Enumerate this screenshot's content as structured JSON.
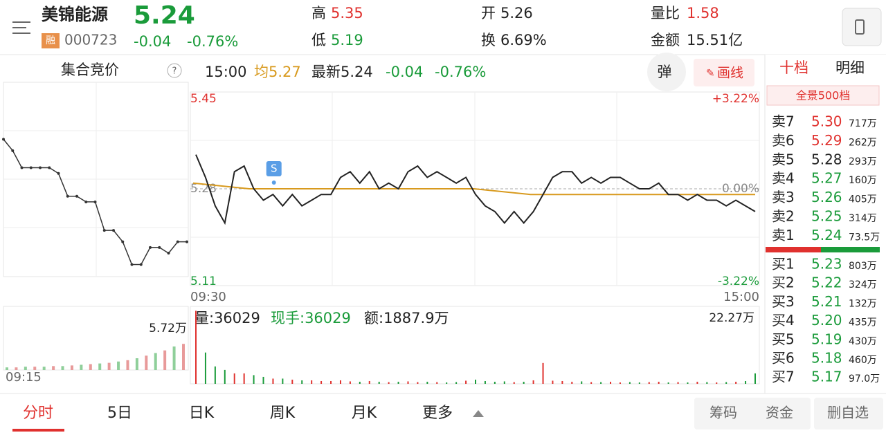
{
  "header": {
    "name": "美锦能源",
    "price": "5.24",
    "tag": "融",
    "code": "000723",
    "change": "-0.04",
    "pct": "-0.76%",
    "high_label": "高",
    "high": "5.35",
    "low_label": "低",
    "low": "5.19",
    "open_label": "开",
    "open": "5.26",
    "turnover_label": "换",
    "turnover": "6.69%",
    "ratio_label": "量比",
    "ratio": "1.58",
    "amount_label": "金额",
    "amount": "15.51亿"
  },
  "info": {
    "auction_title": "集合竞价",
    "help": "?",
    "time": "15:00",
    "avg": "均5.27",
    "latest": "最新5.24",
    "change": "-0.04",
    "pct": "-0.76%",
    "pop": "弹",
    "draw": "画线"
  },
  "intraday": {
    "ylim": [
      5.11,
      5.45
    ],
    "yticks": [
      5.45,
      5.28,
      5.11
    ],
    "pct_ticks": [
      {
        "value": 5.45,
        "label": "+3.22%"
      },
      {
        "value": 5.28,
        "label": "0.00%"
      },
      {
        "value": 5.11,
        "label": "-3.22%"
      }
    ],
    "start": "09:30",
    "end": "15:00",
    "marker": "S",
    "price": [
      5.34,
      5.3,
      5.25,
      5.22,
      5.31,
      5.32,
      5.28,
      5.26,
      5.27,
      5.25,
      5.27,
      5.25,
      5.26,
      5.27,
      5.27,
      5.3,
      5.31,
      5.29,
      5.31,
      5.28,
      5.29,
      5.28,
      5.31,
      5.32,
      5.3,
      5.31,
      5.3,
      5.29,
      5.3,
      5.27,
      5.25,
      5.24,
      5.22,
      5.24,
      5.22,
      5.24,
      5.27,
      5.3,
      5.31,
      5.31,
      5.29,
      5.3,
      5.29,
      5.3,
      5.3,
      5.29,
      5.28,
      5.28,
      5.29,
      5.27,
      5.27,
      5.26,
      5.27,
      5.26,
      5.26,
      5.25,
      5.26,
      5.25,
      5.24
    ],
    "avg": [
      5.29,
      5.28,
      5.28,
      5.28,
      5.28,
      5.28,
      5.27,
      5.27,
      5.27,
      5.27,
      5.27
    ],
    "price_color": "#222222",
    "avg_color": "#d89a1e"
  },
  "volume": {
    "label": "量:36029",
    "hand": "现手:36029",
    "amount": "额:1887.9万",
    "ylim": [
      0,
      22.27
    ],
    "yticks": [
      {
        "value": 22.27,
        "label": "22.27万"
      }
    ],
    "values": [
      21,
      9,
      5,
      4,
      3,
      3,
      2.5,
      2,
      1.5,
      1.5,
      1.2,
      1,
      1,
      0.8,
      0.8,
      1,
      0.7,
      0.6,
      0.8,
      0.6,
      0.5,
      0.6,
      0.7,
      0.5,
      0.6,
      0.5,
      0.4,
      0.5,
      0.9,
      1.2,
      0.8,
      0.6,
      0.7,
      0.5,
      0.6,
      1,
      6,
      0.9,
      0.8,
      0.6,
      0.7,
      0.5,
      0.5,
      0.6,
      0.4,
      0.5,
      0.4,
      0.5,
      0.6,
      0.4,
      0.5,
      0.4,
      0.6,
      0.5,
      0.4,
      0.5,
      0.6,
      0.8,
      3
    ]
  },
  "auction": {
    "start": "09:15",
    "price": [
      5.35,
      5.33,
      5.3,
      5.3,
      5.3,
      5.3,
      5.29,
      5.25,
      5.25,
      5.24,
      5.24,
      5.19,
      5.19,
      5.17,
      5.13,
      5.13,
      5.16,
      5.16,
      5.15,
      5.17,
      5.17
    ],
    "volume_ylim": [
      0,
      5.72
    ],
    "volume_ticks": [
      {
        "value": 5.72,
        "label": "5.72万"
      }
    ],
    "volume": [
      0.4,
      0.4,
      0.5,
      0.5,
      0.5,
      0.6,
      0.6,
      0.7,
      0.8,
      0.9,
      1.0,
      1.1,
      1.3,
      1.5,
      1.8,
      2.2,
      2.6,
      3.0,
      3.6,
      4.0
    ]
  },
  "orderbook": {
    "tab1": "十档",
    "tab2": "明细",
    "panorama": "全景500档",
    "preclose": 5.28,
    "sell": [
      {
        "label": "卖7",
        "price": "5.30",
        "vol": "717万"
      },
      {
        "label": "卖6",
        "price": "5.29",
        "vol": "262万"
      },
      {
        "label": "卖5",
        "price": "5.28",
        "vol": "293万"
      },
      {
        "label": "卖4",
        "price": "5.27",
        "vol": "160万"
      },
      {
        "label": "卖3",
        "price": "5.26",
        "vol": "405万"
      },
      {
        "label": "卖2",
        "price": "5.25",
        "vol": "314万"
      },
      {
        "label": "卖1",
        "price": "5.24",
        "vol": "73.5万"
      }
    ],
    "buy": [
      {
        "label": "买1",
        "price": "5.23",
        "vol": "803万"
      },
      {
        "label": "买2",
        "price": "5.22",
        "vol": "324万"
      },
      {
        "label": "买3",
        "price": "5.21",
        "vol": "132万"
      },
      {
        "label": "买4",
        "price": "5.20",
        "vol": "435万"
      },
      {
        "label": "买5",
        "price": "5.19",
        "vol": "430万"
      },
      {
        "label": "买6",
        "price": "5.18",
        "vol": "460万"
      },
      {
        "label": "买7",
        "price": "5.17",
        "vol": "97.0万"
      }
    ]
  },
  "tabs": [
    "分时",
    "5日",
    "日K",
    "周K",
    "月K",
    "更多"
  ],
  "actions": [
    "筹码",
    "资金",
    "删自选"
  ]
}
